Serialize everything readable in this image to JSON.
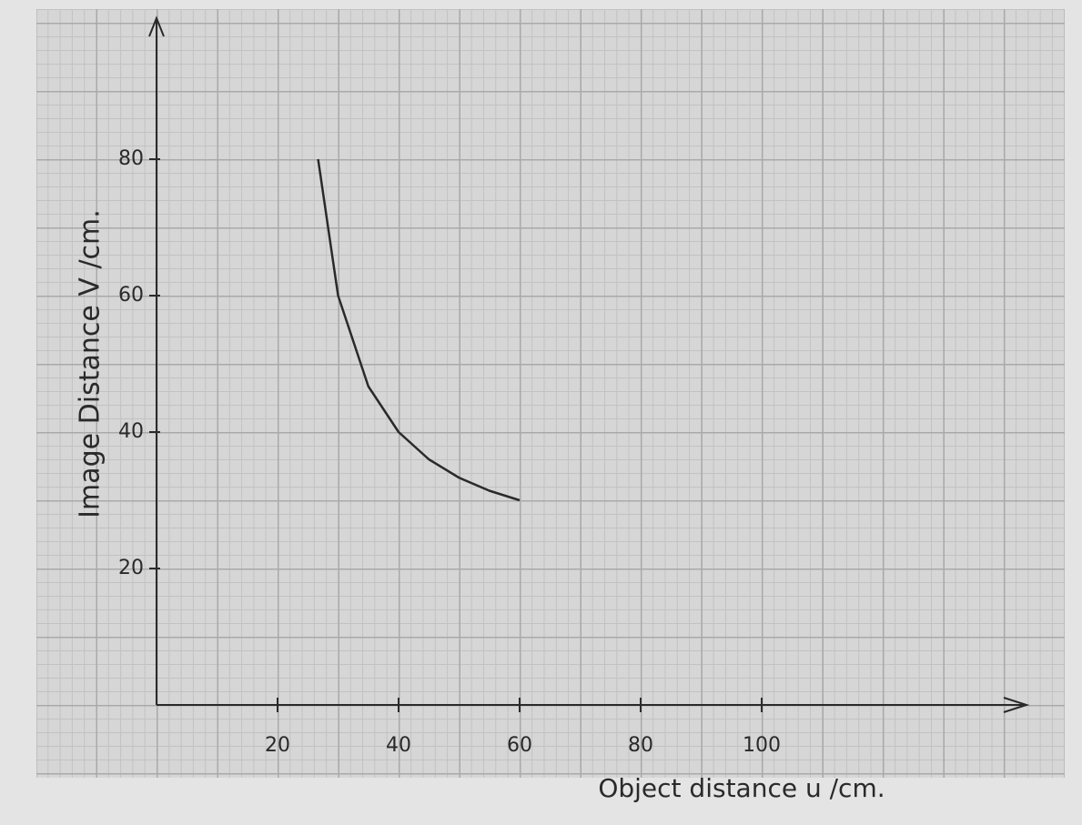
{
  "chart_data": {
    "type": "line",
    "x_label": "Object distance u /cm.",
    "y_label": "Image Distance V /cm.",
    "x": [
      26.7,
      30,
      35,
      40,
      45,
      50,
      55,
      60
    ],
    "series": [
      {
        "color": "#2a2a2a",
        "values": [
          80,
          60,
          46.7,
          40,
          36,
          33.3,
          31.4,
          30
        ]
      }
    ],
    "xlim": [
      0,
      143
    ],
    "ylim": [
      0,
      100
    ],
    "xticks": [
      20,
      40,
      60,
      80,
      100
    ],
    "yticks": [
      20,
      40,
      60,
      80
    ]
  }
}
